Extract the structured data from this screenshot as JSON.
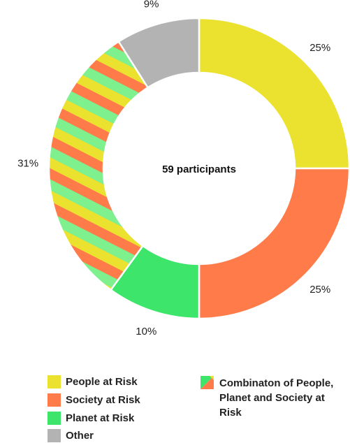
{
  "chart_data": {
    "type": "donut",
    "center_label": "59 participants",
    "slices": [
      {
        "name": "People at Risk",
        "value": 25,
        "label": "25%",
        "color": "#ebe12f",
        "pattern": "solid"
      },
      {
        "name": "Society at Risk",
        "value": 25,
        "label": "25%",
        "color": "#ff7b4a",
        "pattern": "solid"
      },
      {
        "name": "Planet at Risk",
        "value": 10,
        "label": "10%",
        "color": "#3de56a",
        "pattern": "solid"
      },
      {
        "name": "Combinaton of People, Planet and Society at Risk",
        "value": 31,
        "label": "31%",
        "color": "#ebe12f",
        "pattern": "stripes"
      },
      {
        "name": "Other",
        "value": 9,
        "label": "9%",
        "color": "#b3b3b3",
        "pattern": "solid"
      }
    ],
    "stripe_colors": [
      "#ebe12f",
      "#ff7b4a",
      "#7ff08e"
    ]
  },
  "legend": {
    "people": "People at Risk",
    "society": "Society at Risk",
    "planet": "Planet at Risk",
    "other": "Other",
    "combination": "Combinaton of People, Planet and Society at Risk"
  }
}
